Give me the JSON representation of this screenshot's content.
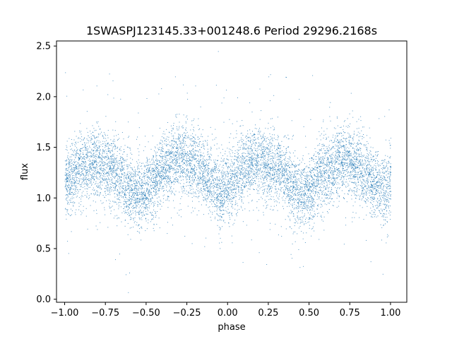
{
  "chart_data": {
    "type": "scatter",
    "title": "1SWASPJ123145.33+001248.6 Period 29296.2168s",
    "xlabel": "phase",
    "ylabel": "flux",
    "xlim": [
      -1.05,
      1.1
    ],
    "ylim": [
      -0.03,
      2.55
    ],
    "xticks": [
      -1.0,
      -0.75,
      -0.5,
      -0.25,
      0.0,
      0.25,
      0.5,
      0.75,
      1.0
    ],
    "xtick_labels": [
      "−1.00",
      "−0.75",
      "−0.50",
      "−0.25",
      "0.00",
      "0.25",
      "0.50",
      "0.75",
      "1.00"
    ],
    "yticks": [
      0.0,
      0.5,
      1.0,
      1.5,
      2.0,
      2.5
    ],
    "ytick_labels": [
      "0.0",
      "0.5",
      "1.0",
      "1.5",
      "2.0",
      "2.5"
    ],
    "grid": false,
    "legend": "none",
    "point_color": "#1f77b4",
    "series": [
      {
        "points": [
          [
            -1.0,
            1.15
          ],
          [
            -0.9,
            1.3
          ],
          [
            -0.8,
            1.36
          ],
          [
            -0.7,
            1.28
          ],
          [
            -0.6,
            1.1
          ],
          [
            -0.55,
            1.02
          ],
          [
            -0.5,
            1.08
          ],
          [
            -0.4,
            1.27
          ],
          [
            -0.3,
            1.4
          ],
          [
            -0.2,
            1.32
          ],
          [
            -0.1,
            1.16
          ],
          [
            -0.05,
            1.04
          ],
          [
            0.0,
            1.12
          ],
          [
            0.1,
            1.3
          ],
          [
            0.18,
            1.38
          ],
          [
            0.3,
            1.3
          ],
          [
            0.4,
            1.12
          ],
          [
            0.45,
            1.02
          ],
          [
            0.5,
            1.08
          ],
          [
            0.6,
            1.26
          ],
          [
            0.7,
            1.4
          ],
          [
            0.8,
            1.32
          ],
          [
            0.9,
            1.16
          ],
          [
            0.95,
            1.06
          ],
          [
            1.0,
            1.14
          ]
        ],
        "scatter_sigma": 0.17,
        "min_flux": 0.05,
        "max_flux": 2.45
      }
    ]
  }
}
